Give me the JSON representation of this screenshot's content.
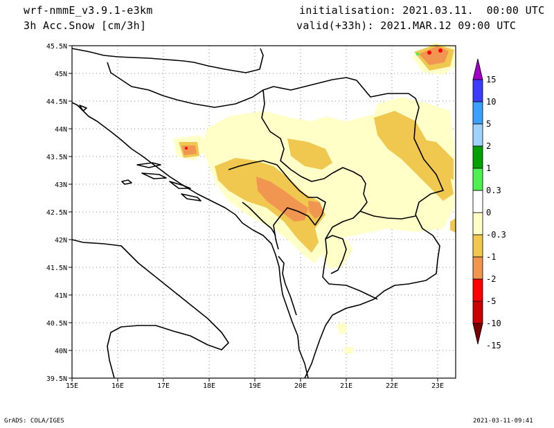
{
  "header": {
    "model": "wrf-nmmE_v3.9.1-e3km",
    "field": "3h Acc.Snow [cm/3h]",
    "init": "initialisation: 2021.03.11.  00:00 UTC",
    "valid": "valid(+33h): 2021.MAR.12 09:00 UTC"
  },
  "map": {
    "lon_ticks": [
      "15E",
      "16E",
      "17E",
      "18E",
      "19E",
      "20E",
      "21E",
      "22E",
      "23E"
    ],
    "lat_ticks": [
      "45.5N",
      "45N",
      "44.5N",
      "44N",
      "43.5N",
      "43N",
      "42.5N",
      "42N",
      "41.5N",
      "41N",
      "40.5N",
      "40N",
      "39.5N"
    ]
  },
  "colorbar": {
    "labels": [
      "15",
      "10",
      "5",
      "2",
      "1",
      "0.3",
      "0",
      "-0.3",
      "-1",
      "-2",
      "-5",
      "-10",
      "-15"
    ],
    "colors": [
      "#a000c8",
      "#3c3cff",
      "#3ca0ff",
      "#a0d2ff",
      "#00a000",
      "#50f050",
      "#ffffff",
      "#ffffc8",
      "#f0c850",
      "#f09650",
      "#ff0000",
      "#c80000",
      "#780000"
    ]
  },
  "footer": {
    "left": "GrADS: COLA/IGES",
    "right": "2021-03-11-09:41"
  }
}
